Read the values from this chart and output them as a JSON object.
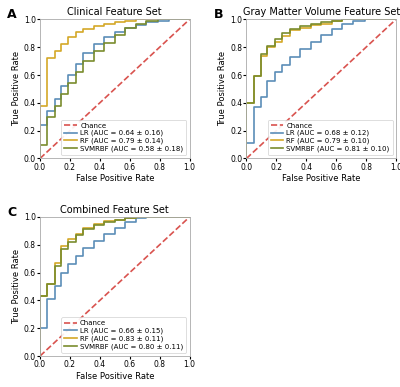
{
  "panels": [
    {
      "label": "A",
      "title": "Clinical Feature Set",
      "legend_loc": "lower right",
      "curves": [
        {
          "name": "Chance",
          "color": "#d9534f",
          "linestyle": "--",
          "linewidth": 1.2,
          "x": [
            0.0,
            1.0
          ],
          "y": [
            0.0,
            1.0
          ]
        },
        {
          "name": "LR (AUC = 0.64 ± 0.16)",
          "color": "#5b8db8",
          "linestyle": "-",
          "linewidth": 1.2,
          "x": [
            0.0,
            0.0,
            0.05,
            0.05,
            0.1,
            0.1,
            0.14,
            0.14,
            0.19,
            0.19,
            0.24,
            0.24,
            0.29,
            0.29,
            0.36,
            0.36,
            0.43,
            0.43,
            0.5,
            0.5,
            0.57,
            0.57,
            0.64,
            0.64,
            0.71,
            0.71,
            0.79,
            0.79,
            0.86,
            0.86,
            0.93,
            0.93,
            1.0
          ],
          "y": [
            0.0,
            0.24,
            0.24,
            0.34,
            0.34,
            0.43,
            0.43,
            0.52,
            0.52,
            0.6,
            0.6,
            0.68,
            0.68,
            0.76,
            0.76,
            0.82,
            0.82,
            0.87,
            0.87,
            0.91,
            0.91,
            0.94,
            0.94,
            0.96,
            0.96,
            0.98,
            0.98,
            0.99,
            0.99,
            1.0,
            1.0,
            1.0,
            1.0
          ]
        },
        {
          "name": "RF (AUC = 0.79 ± 0.14)",
          "color": "#d4a827",
          "linestyle": "-",
          "linewidth": 1.2,
          "x": [
            0.0,
            0.0,
            0.05,
            0.05,
            0.1,
            0.1,
            0.14,
            0.14,
            0.19,
            0.19,
            0.24,
            0.24,
            0.29,
            0.29,
            0.36,
            0.36,
            0.43,
            0.43,
            0.5,
            0.5,
            0.57,
            0.57,
            0.64,
            0.64,
            0.71,
            0.71,
            0.79,
            0.79,
            0.86,
            0.86,
            0.93,
            0.93,
            1.0
          ],
          "y": [
            0.0,
            0.38,
            0.38,
            0.72,
            0.72,
            0.77,
            0.77,
            0.82,
            0.82,
            0.87,
            0.87,
            0.91,
            0.91,
            0.93,
            0.93,
            0.95,
            0.95,
            0.97,
            0.97,
            0.98,
            0.98,
            0.99,
            0.99,
            1.0,
            1.0,
            1.0,
            1.0,
            1.0,
            1.0,
            1.0,
            1.0,
            1.0,
            1.0
          ]
        },
        {
          "name": "SVMRBF (AUC = 0.58 ± 0.18)",
          "color": "#7a8c2e",
          "linestyle": "-",
          "linewidth": 1.2,
          "x": [
            0.0,
            0.0,
            0.05,
            0.05,
            0.1,
            0.1,
            0.14,
            0.14,
            0.19,
            0.19,
            0.24,
            0.24,
            0.29,
            0.29,
            0.36,
            0.36,
            0.43,
            0.43,
            0.5,
            0.5,
            0.57,
            0.57,
            0.64,
            0.64,
            0.71,
            0.71,
            0.79,
            0.79,
            0.86,
            0.86,
            0.93,
            0.93,
            1.0
          ],
          "y": [
            0.0,
            0.1,
            0.1,
            0.3,
            0.3,
            0.38,
            0.38,
            0.46,
            0.46,
            0.54,
            0.54,
            0.62,
            0.62,
            0.7,
            0.7,
            0.77,
            0.77,
            0.83,
            0.83,
            0.89,
            0.89,
            0.94,
            0.94,
            0.97,
            0.97,
            0.99,
            0.99,
            1.0,
            1.0,
            1.0,
            1.0,
            1.0,
            1.0
          ]
        }
      ]
    },
    {
      "label": "B",
      "title": "Gray Matter Volume Feature Set",
      "legend_loc": "lower right",
      "curves": [
        {
          "name": "Chance",
          "color": "#d9534f",
          "linestyle": "--",
          "linewidth": 1.2,
          "x": [
            0.0,
            1.0
          ],
          "y": [
            0.0,
            1.0
          ]
        },
        {
          "name": "LR (AUC = 0.68 ± 0.12)",
          "color": "#5b8db8",
          "linestyle": "-",
          "linewidth": 1.2,
          "x": [
            0.0,
            0.0,
            0.05,
            0.05,
            0.1,
            0.1,
            0.14,
            0.14,
            0.19,
            0.19,
            0.24,
            0.24,
            0.29,
            0.29,
            0.36,
            0.36,
            0.43,
            0.43,
            0.5,
            0.5,
            0.57,
            0.57,
            0.64,
            0.64,
            0.71,
            0.71,
            0.79,
            0.79,
            0.86,
            0.86,
            0.93,
            0.93,
            1.0
          ],
          "y": [
            0.0,
            0.11,
            0.11,
            0.37,
            0.37,
            0.44,
            0.44,
            0.56,
            0.56,
            0.62,
            0.62,
            0.67,
            0.67,
            0.73,
            0.73,
            0.79,
            0.79,
            0.84,
            0.84,
            0.89,
            0.89,
            0.93,
            0.93,
            0.97,
            0.97,
            0.99,
            0.99,
            1.0,
            1.0,
            1.0,
            1.0,
            1.0,
            1.0
          ]
        },
        {
          "name": "RF (AUC = 0.79 ± 0.10)",
          "color": "#d4a827",
          "linestyle": "-",
          "linewidth": 1.2,
          "x": [
            0.0,
            0.0,
            0.05,
            0.05,
            0.1,
            0.1,
            0.14,
            0.14,
            0.19,
            0.19,
            0.24,
            0.24,
            0.29,
            0.29,
            0.36,
            0.36,
            0.43,
            0.43,
            0.5,
            0.5,
            0.57,
            0.57,
            0.64,
            0.64,
            0.71,
            0.71,
            0.79,
            0.79,
            0.86,
            0.86,
            0.93,
            0.93,
            1.0
          ],
          "y": [
            0.0,
            0.4,
            0.4,
            0.59,
            0.59,
            0.74,
            0.74,
            0.8,
            0.8,
            0.84,
            0.84,
            0.88,
            0.88,
            0.92,
            0.92,
            0.94,
            0.94,
            0.96,
            0.96,
            0.97,
            0.97,
            0.99,
            0.99,
            1.0,
            1.0,
            1.0,
            1.0,
            1.0,
            1.0,
            1.0,
            1.0,
            1.0,
            1.0
          ]
        },
        {
          "name": "SVMRBF (AUC = 0.81 ± 0.10)",
          "color": "#7a8c2e",
          "linestyle": "-",
          "linewidth": 1.2,
          "x": [
            0.0,
            0.0,
            0.05,
            0.05,
            0.1,
            0.1,
            0.14,
            0.14,
            0.19,
            0.19,
            0.24,
            0.24,
            0.29,
            0.29,
            0.36,
            0.36,
            0.43,
            0.43,
            0.5,
            0.5,
            0.57,
            0.57,
            0.64,
            0.64,
            0.71,
            0.71,
            0.79,
            0.79,
            0.86,
            0.86,
            0.93,
            0.93,
            1.0
          ],
          "y": [
            0.0,
            0.4,
            0.4,
            0.59,
            0.59,
            0.75,
            0.75,
            0.81,
            0.81,
            0.86,
            0.86,
            0.9,
            0.9,
            0.93,
            0.93,
            0.95,
            0.95,
            0.97,
            0.97,
            0.98,
            0.98,
            0.99,
            0.99,
            1.0,
            1.0,
            1.0,
            1.0,
            1.0,
            1.0,
            1.0,
            1.0,
            1.0,
            1.0
          ]
        }
      ]
    },
    {
      "label": "C",
      "title": "Combined Feature Set",
      "legend_loc": "lower right",
      "curves": [
        {
          "name": "Chance",
          "color": "#d9534f",
          "linestyle": "--",
          "linewidth": 1.2,
          "x": [
            0.0,
            1.0
          ],
          "y": [
            0.0,
            1.0
          ]
        },
        {
          "name": "LR (AUC = 0.66 ± 0.15)",
          "color": "#5b8db8",
          "linestyle": "-",
          "linewidth": 1.2,
          "x": [
            0.0,
            0.0,
            0.05,
            0.05,
            0.1,
            0.1,
            0.14,
            0.14,
            0.19,
            0.19,
            0.24,
            0.24,
            0.29,
            0.29,
            0.36,
            0.36,
            0.43,
            0.43,
            0.5,
            0.5,
            0.57,
            0.57,
            0.64,
            0.64,
            0.71,
            0.71,
            0.79,
            0.79,
            0.86,
            0.86,
            0.93,
            0.93,
            1.0
          ],
          "y": [
            0.0,
            0.2,
            0.2,
            0.41,
            0.41,
            0.5,
            0.5,
            0.6,
            0.6,
            0.66,
            0.66,
            0.72,
            0.72,
            0.78,
            0.78,
            0.83,
            0.83,
            0.88,
            0.88,
            0.92,
            0.92,
            0.96,
            0.96,
            0.99,
            0.99,
            1.0,
            1.0,
            1.0,
            1.0,
            1.0,
            1.0,
            1.0,
            1.0
          ]
        },
        {
          "name": "RF (AUC = 0.83 ± 0.11)",
          "color": "#d4a827",
          "linestyle": "-",
          "linewidth": 1.2,
          "x": [
            0.0,
            0.0,
            0.05,
            0.05,
            0.1,
            0.1,
            0.14,
            0.14,
            0.19,
            0.19,
            0.24,
            0.24,
            0.29,
            0.29,
            0.36,
            0.36,
            0.43,
            0.43,
            0.5,
            0.5,
            0.57,
            0.57,
            0.64,
            0.64,
            0.71,
            0.71,
            0.79,
            0.79,
            0.86,
            0.86,
            0.93,
            0.93,
            1.0
          ],
          "y": [
            0.0,
            0.43,
            0.43,
            0.52,
            0.52,
            0.67,
            0.67,
            0.79,
            0.79,
            0.84,
            0.84,
            0.88,
            0.88,
            0.92,
            0.92,
            0.95,
            0.95,
            0.97,
            0.97,
            0.98,
            0.98,
            0.99,
            0.99,
            1.0,
            1.0,
            1.0,
            1.0,
            1.0,
            1.0,
            1.0,
            1.0,
            1.0,
            1.0
          ]
        },
        {
          "name": "SVMRBF (AUC = 0.80 ± 0.11)",
          "color": "#7a8c2e",
          "linestyle": "-",
          "linewidth": 1.2,
          "x": [
            0.0,
            0.0,
            0.05,
            0.05,
            0.1,
            0.1,
            0.14,
            0.14,
            0.19,
            0.19,
            0.24,
            0.24,
            0.29,
            0.29,
            0.36,
            0.36,
            0.43,
            0.43,
            0.5,
            0.5,
            0.57,
            0.57,
            0.64,
            0.64,
            0.71,
            0.71,
            0.79,
            0.79,
            0.86,
            0.86,
            0.93,
            0.93,
            1.0
          ],
          "y": [
            0.0,
            0.43,
            0.43,
            0.52,
            0.52,
            0.65,
            0.65,
            0.77,
            0.77,
            0.82,
            0.82,
            0.87,
            0.87,
            0.91,
            0.91,
            0.94,
            0.94,
            0.96,
            0.96,
            0.98,
            0.98,
            0.99,
            0.99,
            1.0,
            1.0,
            1.0,
            1.0,
            1.0,
            1.0,
            1.0,
            1.0,
            1.0,
            1.0
          ]
        }
      ]
    }
  ],
  "xlabel": "False Positive Rate",
  "ylabel": "True Positive Rate",
  "xlim": [
    0.0,
    1.0
  ],
  "ylim": [
    0.0,
    1.0
  ],
  "xticks": [
    0.0,
    0.2,
    0.4,
    0.6,
    0.8,
    1.0
  ],
  "yticks": [
    0.0,
    0.2,
    0.4,
    0.6,
    0.8,
    1.0
  ],
  "background_color": "#ffffff",
  "figure_background": "#ffffff",
  "fontsize_title": 7,
  "fontsize_label": 6,
  "fontsize_tick": 5.5,
  "fontsize_legend": 5.0,
  "label_fontsize": 9
}
